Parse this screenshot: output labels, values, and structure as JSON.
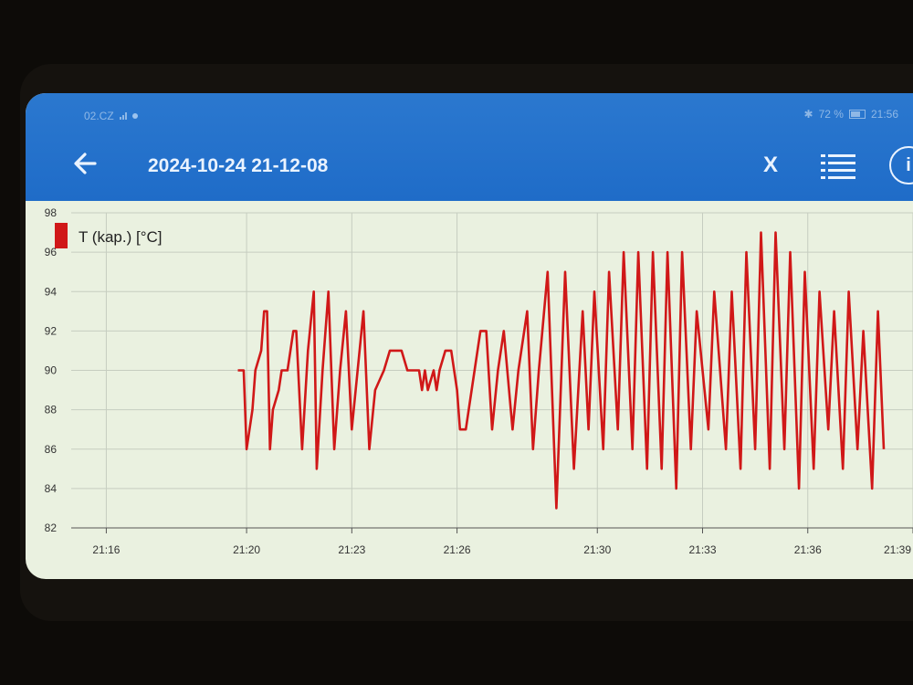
{
  "status_bar": {
    "left_text": "02.CZ",
    "battery_text": "72 %",
    "time": "21:56"
  },
  "header": {
    "title": "2024-10-24 21-12-08",
    "close_label": "X"
  },
  "icons": {
    "back": "back-arrow-icon",
    "list": "list-icon",
    "info": "info-icon"
  },
  "colors": {
    "appbar": "#1f6cc8",
    "series": "#d01818",
    "plot_bg": "#eaf1e0",
    "grid": "#c6cdc0"
  },
  "chart_data": {
    "type": "line",
    "title": "",
    "xlabel": "",
    "ylabel": "",
    "ylim": [
      82,
      98
    ],
    "xlim": [
      "21:15:00",
      "21:39:00"
    ],
    "y_ticks": [
      "82",
      "84",
      "86",
      "88",
      "90",
      "92",
      "94",
      "96",
      "98"
    ],
    "x_ticks": [
      {
        "label": "21:16",
        "time": "21:16:00"
      },
      {
        "label": "21:20",
        "time": "21:20:00"
      },
      {
        "label": "21:23",
        "time": "21:23:00"
      },
      {
        "label": "21:26",
        "time": "21:26:00"
      },
      {
        "label": "21:30",
        "time": "21:30:00"
      },
      {
        "label": "21:33",
        "time": "21:33:00"
      },
      {
        "label": "21:36",
        "time": "21:36:00"
      },
      {
        "label": "21:39",
        "time": "21:39:00"
      }
    ],
    "grid": true,
    "legend_position": "top-left",
    "series": [
      {
        "name": "T (kap.) [°C]",
        "points": [
          [
            "21:19:45",
            90
          ],
          [
            "21:19:55",
            90
          ],
          [
            "21:20:00",
            86
          ],
          [
            "21:20:05",
            87
          ],
          [
            "21:20:10",
            88
          ],
          [
            "21:20:15",
            90
          ],
          [
            "21:20:25",
            91
          ],
          [
            "21:20:30",
            93
          ],
          [
            "21:20:35",
            93
          ],
          [
            "21:20:40",
            86
          ],
          [
            "21:20:45",
            88
          ],
          [
            "21:20:55",
            89
          ],
          [
            "21:21:00",
            90
          ],
          [
            "21:21:10",
            90
          ],
          [
            "21:21:15",
            91
          ],
          [
            "21:21:20",
            92
          ],
          [
            "21:21:25",
            92
          ],
          [
            "21:21:35",
            86
          ],
          [
            "21:21:45",
            91
          ],
          [
            "21:21:55",
            94
          ],
          [
            "21:22:00",
            85
          ],
          [
            "21:22:10",
            90
          ],
          [
            "21:22:20",
            94
          ],
          [
            "21:22:30",
            86
          ],
          [
            "21:22:40",
            90
          ],
          [
            "21:22:50",
            93
          ],
          [
            "21:23:00",
            87
          ],
          [
            "21:23:10",
            90
          ],
          [
            "21:23:20",
            93
          ],
          [
            "21:23:30",
            86
          ],
          [
            "21:23:40",
            89
          ],
          [
            "21:23:55",
            90
          ],
          [
            "21:24:05",
            91
          ],
          [
            "21:24:25",
            91
          ],
          [
            "21:24:35",
            90
          ],
          [
            "21:24:55",
            90
          ],
          [
            "21:25:00",
            89
          ],
          [
            "21:25:05",
            90
          ],
          [
            "21:25:10",
            89
          ],
          [
            "21:25:20",
            90
          ],
          [
            "21:25:25",
            89
          ],
          [
            "21:25:30",
            90
          ],
          [
            "21:25:40",
            91
          ],
          [
            "21:25:50",
            91
          ],
          [
            "21:26:00",
            89
          ],
          [
            "21:26:05",
            87
          ],
          [
            "21:26:15",
            87
          ],
          [
            "21:26:20",
            88
          ],
          [
            "21:26:30",
            90
          ],
          [
            "21:26:40",
            92
          ],
          [
            "21:26:50",
            92
          ],
          [
            "21:27:00",
            87
          ],
          [
            "21:27:10",
            90
          ],
          [
            "21:27:20",
            92
          ],
          [
            "21:27:35",
            87
          ],
          [
            "21:27:45",
            90
          ],
          [
            "21:28:00",
            93
          ],
          [
            "21:28:10",
            86
          ],
          [
            "21:28:20",
            90
          ],
          [
            "21:28:35",
            95
          ],
          [
            "21:28:50",
            83
          ],
          [
            "21:29:05",
            95
          ],
          [
            "21:29:20",
            85
          ],
          [
            "21:29:35",
            93
          ],
          [
            "21:29:45",
            87
          ],
          [
            "21:29:55",
            94
          ],
          [
            "21:30:10",
            86
          ],
          [
            "21:30:20",
            95
          ],
          [
            "21:30:35",
            87
          ],
          [
            "21:30:45",
            96
          ],
          [
            "21:31:00",
            86
          ],
          [
            "21:31:10",
            96
          ],
          [
            "21:31:25",
            85
          ],
          [
            "21:31:35",
            96
          ],
          [
            "21:31:50",
            85
          ],
          [
            "21:32:00",
            96
          ],
          [
            "21:32:15",
            84
          ],
          [
            "21:32:25",
            96
          ],
          [
            "21:32:40",
            86
          ],
          [
            "21:32:50",
            93
          ],
          [
            "21:33:10",
            87
          ],
          [
            "21:33:20",
            94
          ],
          [
            "21:33:40",
            86
          ],
          [
            "21:33:50",
            94
          ],
          [
            "21:34:05",
            85
          ],
          [
            "21:34:15",
            96
          ],
          [
            "21:34:30",
            86
          ],
          [
            "21:34:40",
            97
          ],
          [
            "21:34:55",
            85
          ],
          [
            "21:35:05",
            97
          ],
          [
            "21:35:20",
            86
          ],
          [
            "21:35:30",
            96
          ],
          [
            "21:35:45",
            84
          ],
          [
            "21:35:55",
            95
          ],
          [
            "21:36:10",
            85
          ],
          [
            "21:36:20",
            94
          ],
          [
            "21:36:35",
            87
          ],
          [
            "21:36:45",
            93
          ],
          [
            "21:37:00",
            85
          ],
          [
            "21:37:10",
            94
          ],
          [
            "21:37:25",
            86
          ],
          [
            "21:37:35",
            92
          ],
          [
            "21:37:50",
            84
          ],
          [
            "21:38:00",
            93
          ],
          [
            "21:38:10",
            86
          ]
        ]
      }
    ]
  }
}
